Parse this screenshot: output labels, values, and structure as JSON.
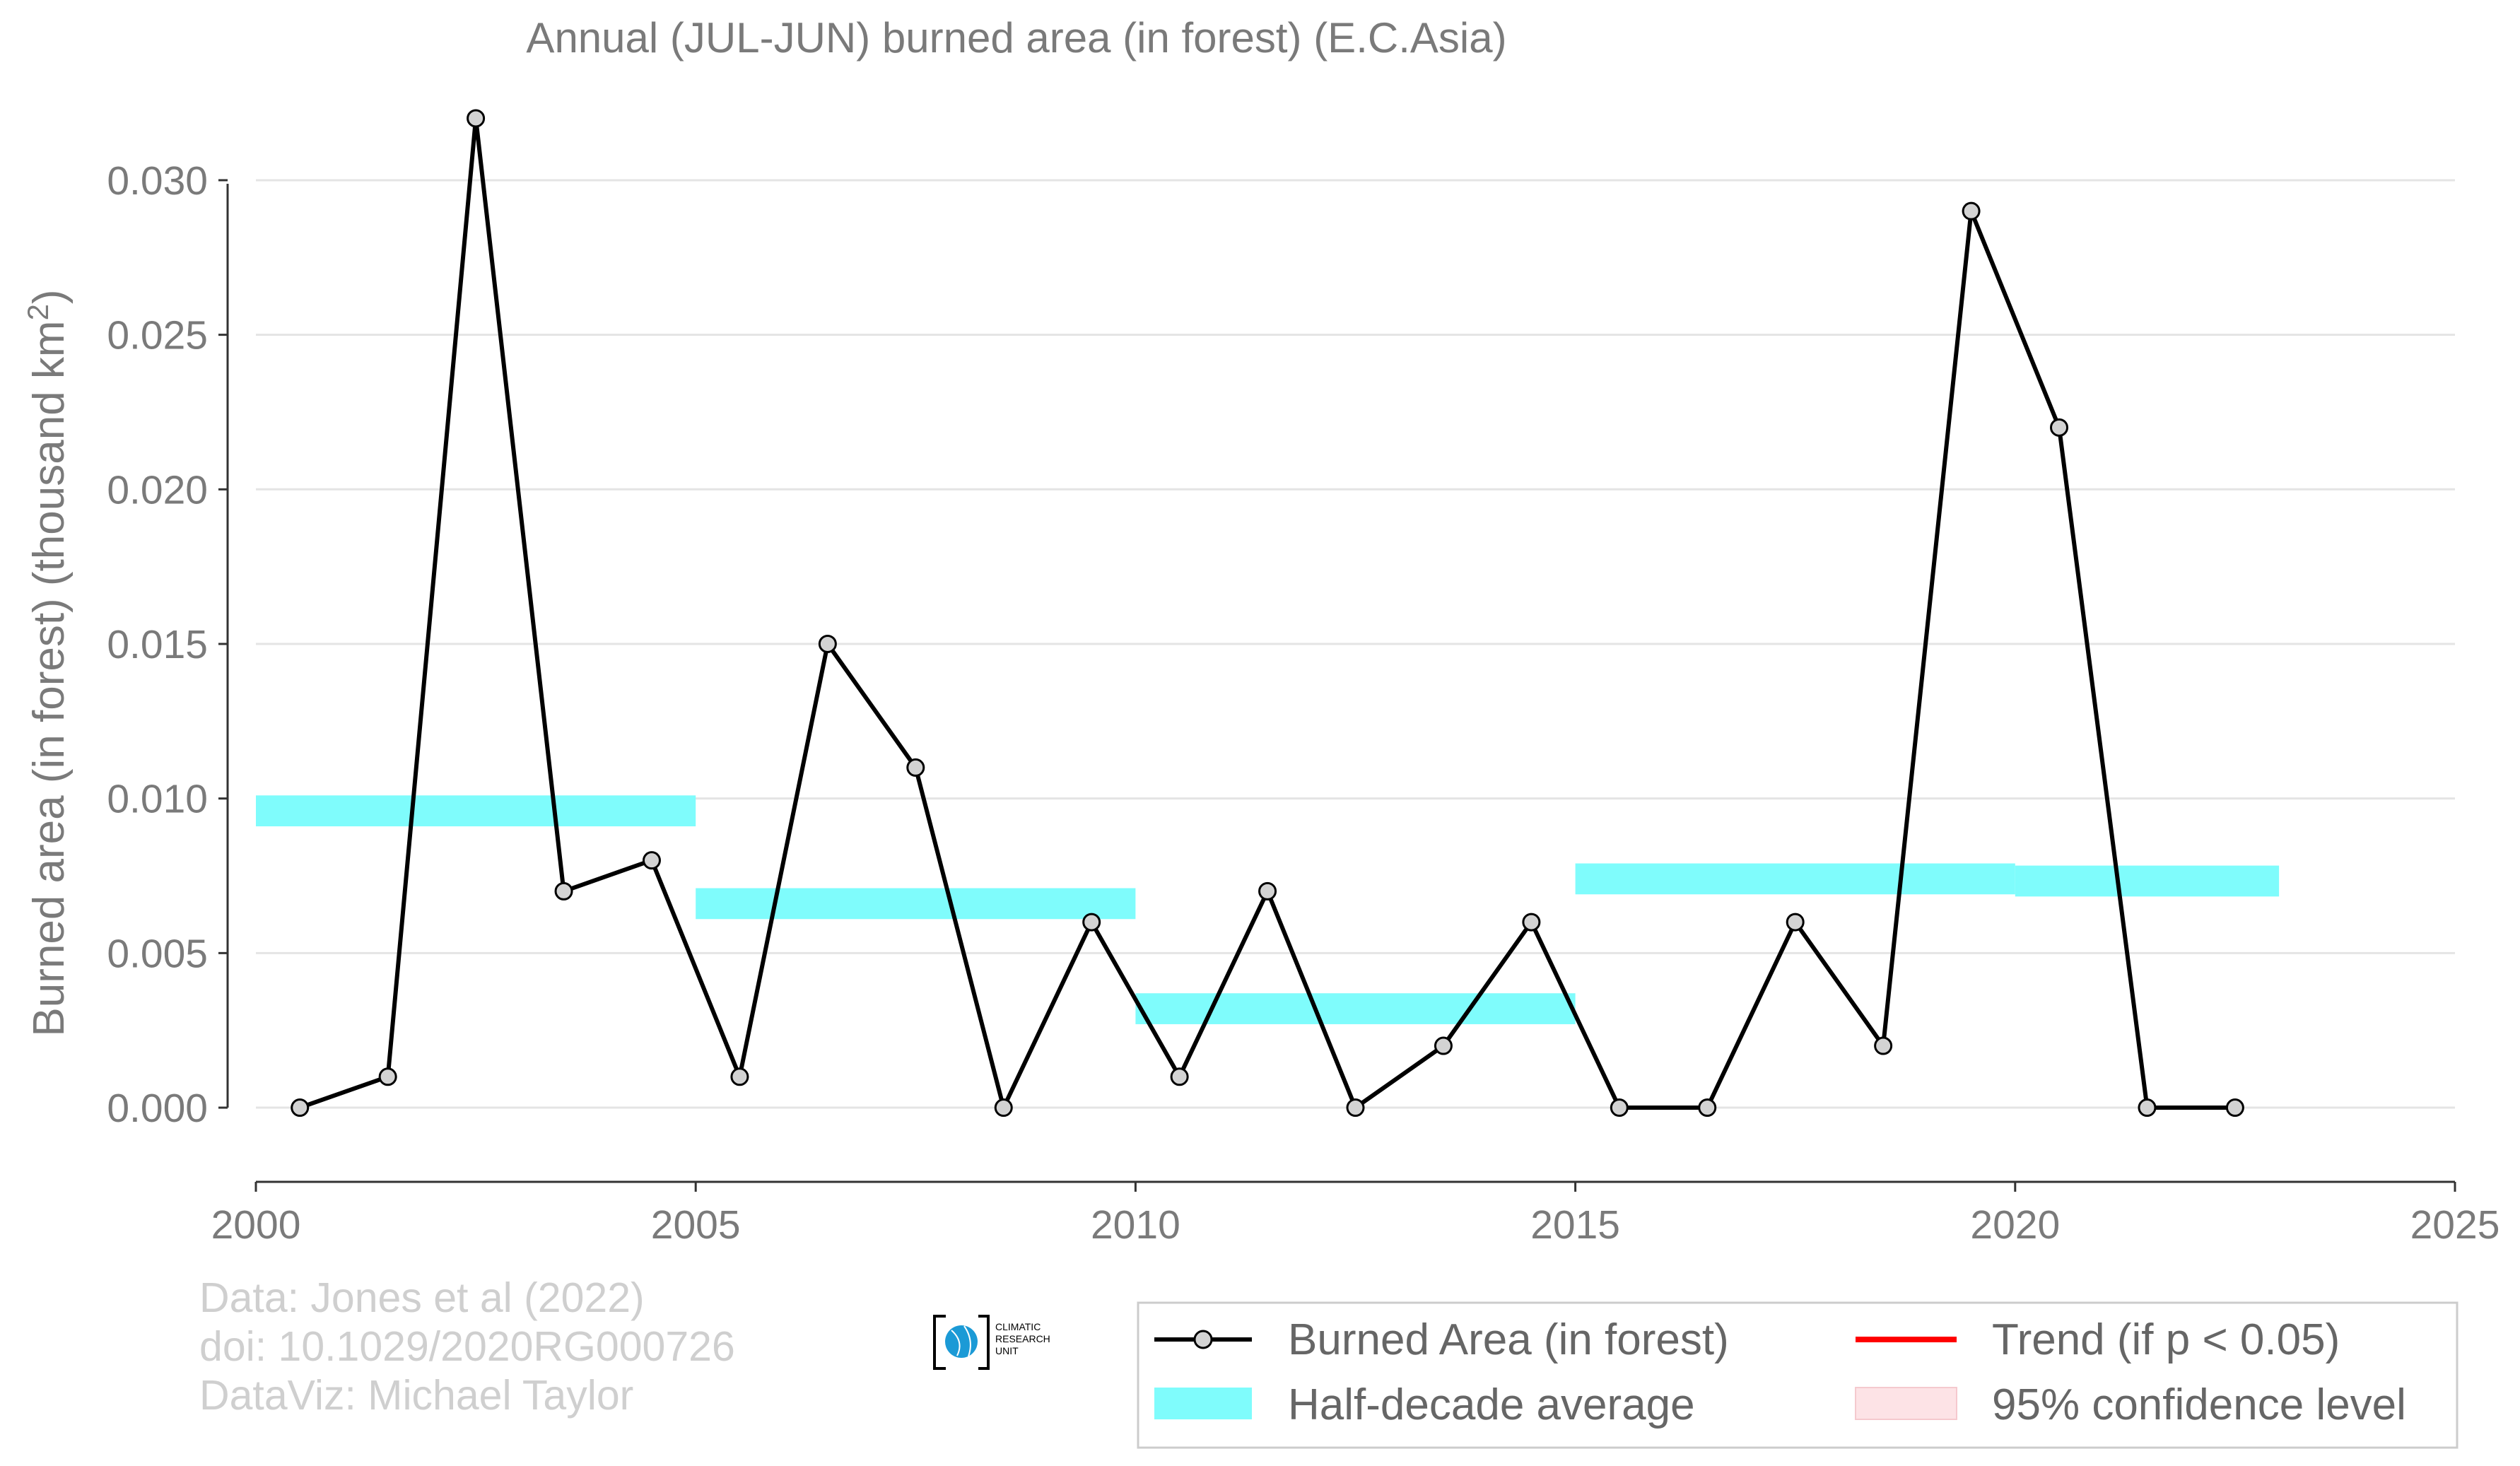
{
  "chart_data": {
    "type": "line",
    "title": "Annual (JUL-JUN) burned area (in forest) (E.C.Asia)",
    "ylabel": "Burned area (in forest) (thousand km",
    "ylabel_sup": "2",
    "ylabel_end": ")",
    "xlabel": "",
    "xlim": [
      2000,
      2025
    ],
    "ylim": [
      -0.0024,
      0.034
    ],
    "xticks": [
      "2000",
      "2005",
      "2010",
      "2015",
      "2020",
      "2025"
    ],
    "yticks": [
      "0.000",
      "0.005",
      "0.010",
      "0.015",
      "0.020",
      "0.025",
      "0.030"
    ],
    "grid": true,
    "series": [
      {
        "name": "Burned Area (in forest)",
        "color": "#000000",
        "x": [
          2000.5,
          2001.5,
          2002.5,
          2003.5,
          2004.5,
          2005.5,
          2006.5,
          2007.5,
          2008.5,
          2009.5,
          2010.5,
          2011.5,
          2012.5,
          2013.5,
          2014.5,
          2015.5,
          2016.5,
          2017.5,
          2018.5,
          2019.5,
          2020.5,
          2021.5,
          2022.5
        ],
        "y": [
          0.0,
          0.001,
          0.032,
          0.007,
          0.008,
          0.001,
          0.015,
          0.011,
          0.0,
          0.006,
          0.001,
          0.007,
          0.0,
          0.002,
          0.006,
          0.0,
          0.0,
          0.006,
          0.002,
          0.029,
          0.022,
          0.0,
          0.0
        ]
      }
    ],
    "half_decade_average": {
      "name": "Half-decade average",
      "color": "#7ffcfc",
      "segments": [
        {
          "x0": 2000,
          "x1": 2005,
          "y": 0.0096
        },
        {
          "x0": 2005,
          "x1": 2010,
          "y": 0.0066
        },
        {
          "x0": 2010,
          "x1": 2015,
          "y": 0.0032
        },
        {
          "x0": 2015,
          "x1": 2020,
          "y": 0.0074
        },
        {
          "x0": 2020,
          "x1": 2023,
          "y": 0.00733
        }
      ]
    },
    "legend": {
      "placement": "bottom-right",
      "items": [
        {
          "label": "Burned Area (in forest)",
          "kind": "line-marker",
          "color": "#000000"
        },
        {
          "label": "Trend (if p < 0.05)",
          "kind": "line",
          "color": "#ff0000"
        },
        {
          "label": "Half-decade average",
          "kind": "band",
          "color": "#7ffcfc"
        },
        {
          "label": "95% confidence level",
          "kind": "band",
          "color": "#fde3e6"
        }
      ]
    }
  },
  "credits": {
    "line1": "Data: Jones et al (2022)",
    "line2": "doi: 10.1029/2020RG000726",
    "line3": "DataViz: Michael Taylor"
  },
  "logo": {
    "icon": "globe-icon",
    "line1": "CLIMATIC",
    "line2": "RESEARCH",
    "line3": "UNIT"
  }
}
